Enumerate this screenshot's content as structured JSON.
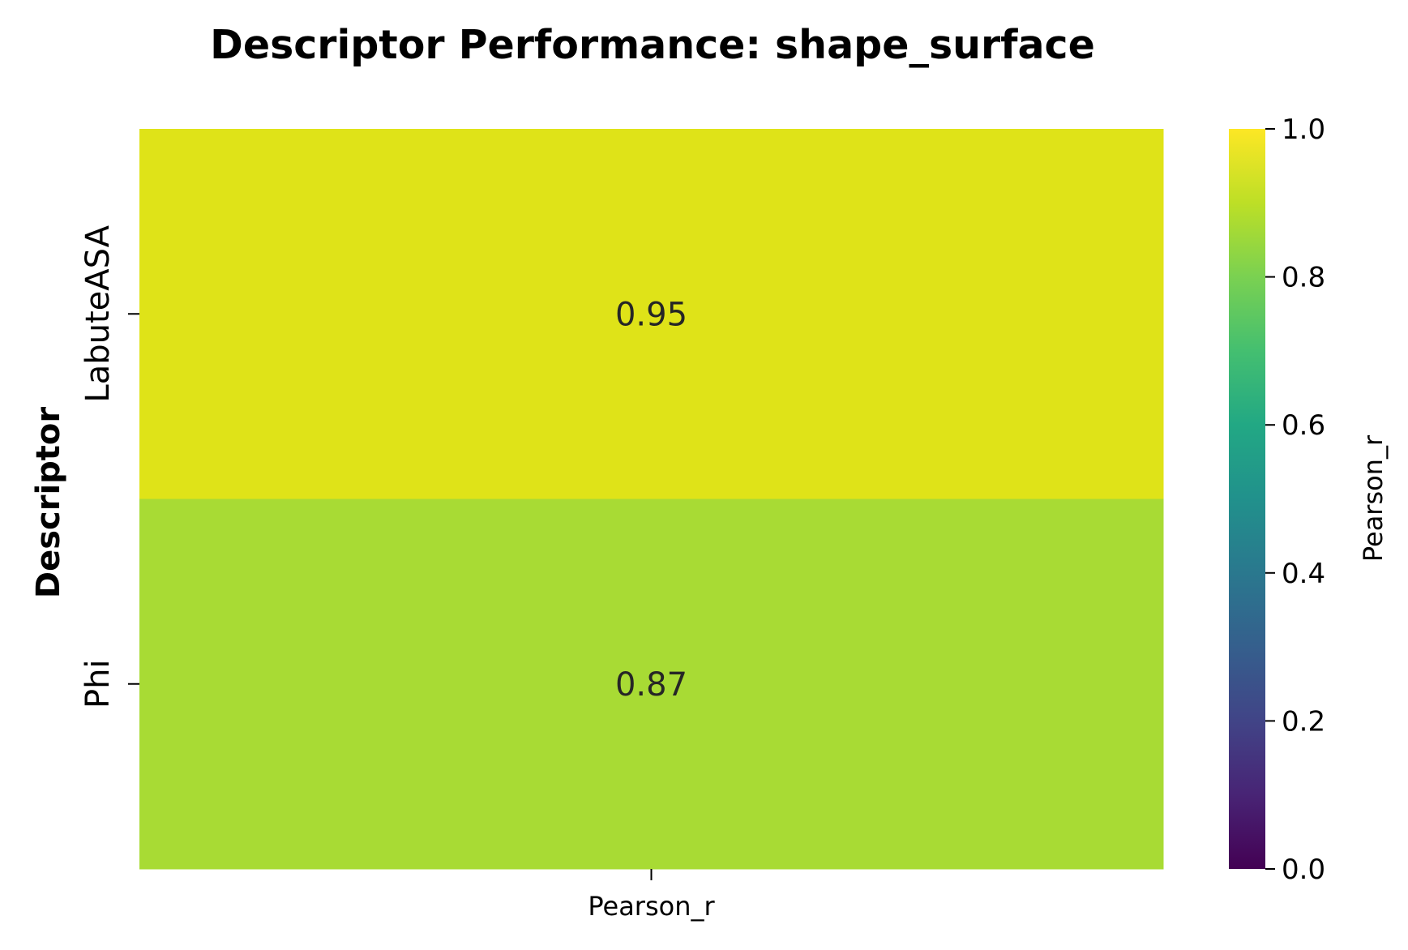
{
  "chart_data": {
    "type": "heatmap",
    "title": "Descriptor Performance: shape_surface",
    "xlabel": "",
    "ylabel": "Descriptor",
    "columns": [
      "Pearson_r"
    ],
    "rows": [
      "LabuteASA",
      "Phi"
    ],
    "values": [
      [
        0.95
      ],
      [
        0.87
      ]
    ],
    "annotations": [
      [
        "0.95"
      ],
      [
        "0.87"
      ]
    ],
    "colormap": "viridis",
    "vmin": 0.0,
    "vmax": 1.0,
    "colorbar": {
      "label": "Pearson_r",
      "ticks": [
        0.0,
        0.2,
        0.4,
        0.6,
        0.8,
        1.0
      ],
      "tick_labels": [
        "0.0",
        "0.2",
        "0.4",
        "0.6",
        "0.8",
        "1.0"
      ]
    },
    "cell_colors": [
      "#dfe318",
      "#a8db34"
    ],
    "legend": "colorbar-right",
    "grid": false
  }
}
